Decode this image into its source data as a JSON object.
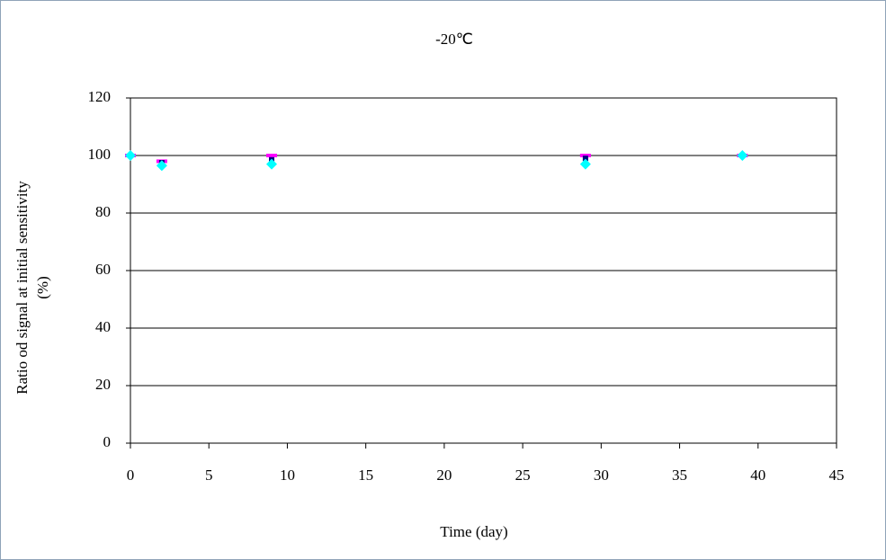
{
  "chart_data": {
    "type": "scatter",
    "title": "-20℃",
    "x_label": "Time (day)",
    "y_label": [
      "Ratio od signal at initial sensitivity",
      "(%)"
    ],
    "x": [
      0,
      2,
      9,
      29,
      39
    ],
    "series": [
      {
        "color": "#ff00ff",
        "marker": "dash",
        "values": [
          100,
          98,
          100,
          100,
          100
        ]
      },
      {
        "color": "#000080",
        "marker": "square",
        "values": [
          100,
          97.5,
          98.5,
          99,
          100
        ]
      },
      {
        "color": "#00ffff",
        "marker": "diamond",
        "values": [
          100,
          96.5,
          97,
          97,
          100
        ]
      }
    ],
    "xlim": [
      0,
      45
    ],
    "xticks": [
      0,
      5,
      10,
      15,
      20,
      25,
      30,
      35,
      40,
      45
    ],
    "ylim": [
      0,
      120
    ],
    "yticks": [
      0,
      20,
      40,
      60,
      80,
      100,
      120
    ],
    "grid": true
  }
}
